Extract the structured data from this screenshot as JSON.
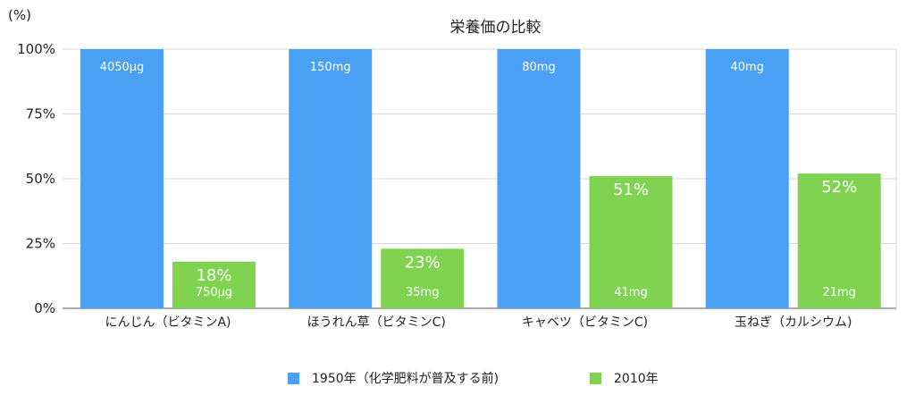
{
  "chart_data": {
    "type": "bar",
    "title": "栄養価の比較",
    "ylabel": "(%)",
    "ylim": [
      0,
      100
    ],
    "yticks": [
      "0%",
      "25%",
      "50%",
      "75%",
      "100%"
    ],
    "ytick_values": [
      0,
      25,
      50,
      75,
      100
    ],
    "grid": true,
    "legend_position": "bottom",
    "categories": [
      "にんじん（ビタミンA)",
      "ほうれん草（ビタミンC)",
      "キャベツ（ビタミンC)",
      "玉ねぎ（カルシウム)"
    ],
    "series": [
      {
        "name": "1950年（化学肥料が普及する前)",
        "color": "#4aa0f5",
        "values": [
          100,
          100,
          100,
          100
        ],
        "bar_labels": [
          "4050μg",
          "150mg",
          "80mg",
          "40mg"
        ],
        "pct_labels": [
          "",
          "",
          "",
          ""
        ]
      },
      {
        "name": "2010年",
        "color": "#7fd350",
        "values": [
          18,
          23,
          51,
          52
        ],
        "bar_labels": [
          "750μg",
          "35mg",
          "41mg",
          "21mg"
        ],
        "pct_labels": [
          "18%",
          "23%",
          "51%",
          "52%"
        ]
      }
    ]
  }
}
